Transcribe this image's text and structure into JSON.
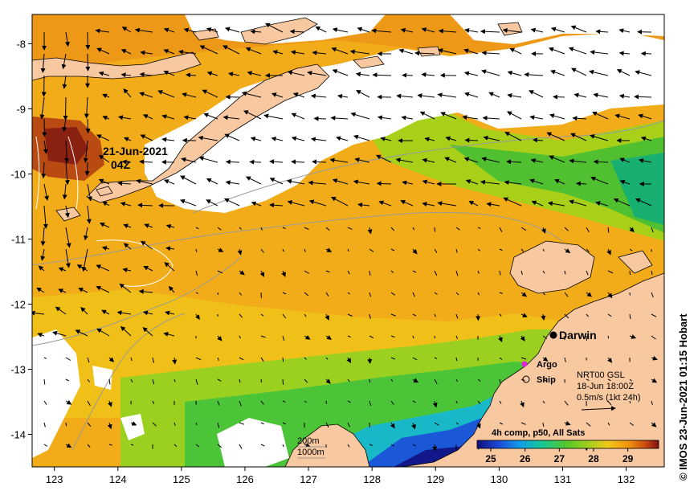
{
  "map": {
    "lon_ticks": [
      "123",
      "124",
      "125",
      "126",
      "127",
      "128",
      "129",
      "130",
      "131",
      "132"
    ],
    "lat_ticks": [
      "-8",
      "-9",
      "-10",
      "-11",
      "-12",
      "-13",
      "-14"
    ],
    "lon_range": [
      122.65,
      132.6
    ],
    "lat_range": [
      -7.55,
      -14.5
    ],
    "image_time_label_line1": "21-Jun-2021",
    "image_time_label_line2": "04Z",
    "city": "Darwin",
    "legend_argo": "Argo",
    "legend_ship": "Ship",
    "current_source": "NRT00 GSL",
    "current_time": "18-Jun 18:00Z",
    "current_scale": "0.5m/s (1kt 24h)",
    "contour_200": "200m",
    "contour_1000": "1000m",
    "composite_title": "4h comp, p50, All Sats",
    "colorbar_ticks": [
      "25",
      "26",
      "27",
      "28",
      "29"
    ],
    "colorbar_range": [
      24.6,
      29.9
    ],
    "credit": "© IMOS 23-Jun-2021 01:15 Hobart",
    "colors": {
      "land": "#f8c8a0",
      "cloud": "#ffffff",
      "argo": "#e020e0"
    }
  }
}
